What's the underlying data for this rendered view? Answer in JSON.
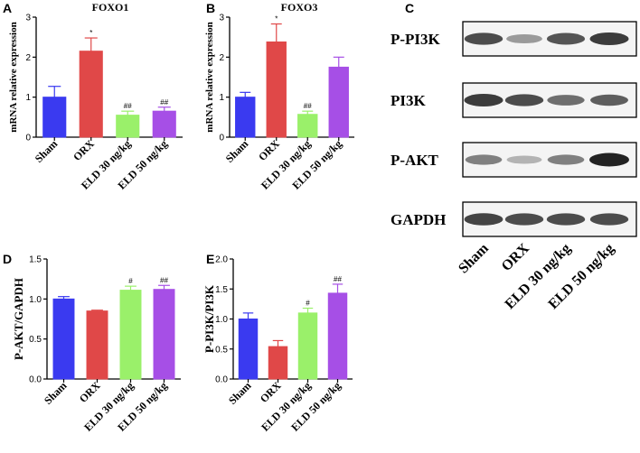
{
  "panels": {
    "A": "A",
    "B": "B",
    "C": "C",
    "D": "D",
    "E": "E"
  },
  "colors": {
    "Sham": "#3a3af0",
    "ORX": "#e04848",
    "ELD 30 ng/kg": "#9af06a",
    "ELD 50 ng/kg": "#a64fe6"
  },
  "chart_data": [
    {
      "id": "A",
      "type": "bar",
      "title": "FOXO1",
      "xlabel": "",
      "ylabel": "mRNA relative expression",
      "categories": [
        "Sham",
        "ORX",
        "ELD 30 ng/kg",
        "ELD 50 ng/kg"
      ],
      "values": [
        1.0,
        2.15,
        0.55,
        0.65
      ],
      "errors": [
        0.27,
        0.33,
        0.1,
        0.1
      ],
      "annotations": [
        "",
        "*",
        "##",
        "##"
      ],
      "ylim": [
        0,
        3
      ],
      "yticks": [
        0,
        1,
        2,
        3
      ]
    },
    {
      "id": "B",
      "type": "bar",
      "title": "FOXO3",
      "xlabel": "",
      "ylabel": "mRNA relative expression",
      "categories": [
        "Sham",
        "ORX",
        "ELD 30 ng/kg",
        "ELD 50 ng/kg"
      ],
      "values": [
        1.0,
        2.38,
        0.57,
        1.75
      ],
      "errors": [
        0.12,
        0.45,
        0.08,
        0.25
      ],
      "annotations": [
        "",
        "*",
        "##",
        ""
      ],
      "ylim": [
        0,
        3
      ],
      "yticks": [
        0,
        1,
        2,
        3
      ]
    },
    {
      "id": "D",
      "type": "bar",
      "title": "",
      "xlabel": "",
      "ylabel": "P-AKT/GAPDH",
      "categories": [
        "Sham",
        "ORX",
        "ELD 30 ng/kg",
        "ELD 50 ng/kg"
      ],
      "values": [
        1.0,
        0.85,
        1.11,
        1.12
      ],
      "errors": [
        0.03,
        0.01,
        0.05,
        0.05
      ],
      "annotations": [
        "",
        "",
        "#",
        "##"
      ],
      "ylim": [
        0,
        1.5
      ],
      "yticks": [
        0.0,
        0.5,
        1.0,
        1.5
      ]
    },
    {
      "id": "E",
      "type": "bar",
      "title": "",
      "xlabel": "",
      "ylabel": "P-PI3K/PI3K",
      "categories": [
        "Sham",
        "ORX",
        "ELD 30 ng/kg",
        "ELD 50 ng/kg"
      ],
      "values": [
        1.0,
        0.54,
        1.1,
        1.43
      ],
      "errors": [
        0.1,
        0.1,
        0.08,
        0.15
      ],
      "annotations": [
        "",
        "",
        "#",
        "##"
      ],
      "ylim": [
        0,
        2.0
      ],
      "yticks": [
        0.0,
        0.5,
        1.0,
        1.5,
        2.0
      ]
    }
  ],
  "blot": {
    "rows": [
      "P-PI3K",
      "PI3K",
      "P-AKT",
      "GAPDH"
    ],
    "categories": [
      "Sham",
      "ORX",
      "ELD 30 ng/kg",
      "ELD 50 ng/kg"
    ],
    "band_intensity": [
      [
        0.75,
        0.3,
        0.7,
        0.85
      ],
      [
        0.85,
        0.75,
        0.55,
        0.65
      ],
      [
        0.45,
        0.15,
        0.45,
        1.0
      ],
      [
        0.8,
        0.75,
        0.75,
        0.75
      ]
    ]
  }
}
